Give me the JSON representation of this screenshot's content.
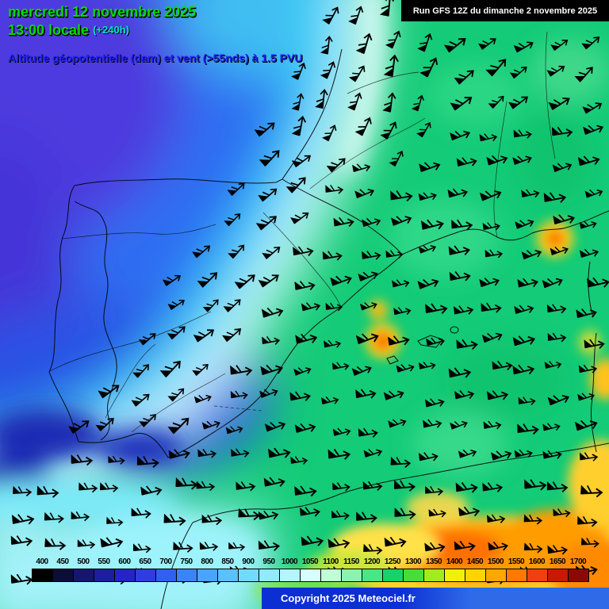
{
  "header": {
    "date": "mercredi 12 novembre 2025",
    "time": "13:00 locale",
    "offset": "(+240h)",
    "run": "Run GFS 12Z du dimanche 2 novembre 2025",
    "subtitle": "Altitude géopotentielle (dam) et vent (>55nds) à 1.5 PVU"
  },
  "footer": {
    "copyright": "Copyright 2025 Meteociel.fr"
  },
  "colors": {
    "date_text": "#00dc00",
    "offset_text": "#00e6c8",
    "subtitle_text": "#2222f0",
    "run_bg": "#000000",
    "run_text": "#ffffff",
    "tick_text": "#000000",
    "copyright_bg": "#0c2fd4",
    "copyright_bg2": "#2f6ae8",
    "copyright_text": "#ffffff"
  },
  "chart_data": {
    "type": "heatmap",
    "title": "Altitude géopotentielle (dam) et vent (>55nds) à 1.5 PVU",
    "units": "dam",
    "model": "GFS",
    "run_label": "Run GFS 12Z du dimanche 2 novembre 2025",
    "valid_label": "mercredi 12 novembre 2025 13:00 locale (+240h)",
    "region": "Iberian Peninsula, France, western Mediterranean, northwest Africa",
    "legend_values": [
      400,
      450,
      500,
      550,
      600,
      650,
      700,
      750,
      800,
      850,
      900,
      950,
      1000,
      1050,
      1100,
      1150,
      1200,
      1250,
      1300,
      1350,
      1400,
      1450,
      1500,
      1550,
      1600,
      1650,
      1700
    ],
    "legend_colors": [
      "#000000",
      "#0d0d38",
      "#16166e",
      "#1d1da0",
      "#2424c8",
      "#2e3ce2",
      "#2f60f2",
      "#3a84fa",
      "#48a4ff",
      "#5ac0ff",
      "#70daff",
      "#90ebff",
      "#b4f6ff",
      "#d8ffff",
      "#c0ffd6",
      "#8af3b0",
      "#4ae588",
      "#17d269",
      "#45dc3c",
      "#a4ea1e",
      "#f0f00a",
      "#ffd400",
      "#ffa600",
      "#ff7800",
      "#f33e14",
      "#c81806",
      "#8a0a02"
    ],
    "field_features": [
      {
        "region": "northwest / west of Iberia (Atlantic trough)",
        "geopotential_dam": "550-800, darkest (500-600) near top-left corner and off Portugal"
      },
      {
        "region": "trough axis",
        "description": "cyan-to-white band running from north (top centre) southwest to the Gulf of Cadiz / bottom-left"
      },
      {
        "region": "eastern Spain, France, western Mediterranean",
        "geopotential_dam": "1150-1250 (broad green ridge)"
      },
      {
        "region": "local maxima near eastern Spain (~Teruel area) and southern France",
        "geopotential_dam": "1400-1600 (orange/red spots)"
      },
      {
        "region": "North Africa / bottom right band",
        "geopotential_dam": "1350-1550 (yellow-orange band)"
      }
    ],
    "wind_overlay": {
      "symbol": "wind barbs with pennants",
      "shown_above_knots": 55,
      "flow": "westerly to southwesterly over most of the domain, turning northerly along the trough axis near the top of the map; no plotted wind in the upper-left (trough core) sector"
    }
  }
}
